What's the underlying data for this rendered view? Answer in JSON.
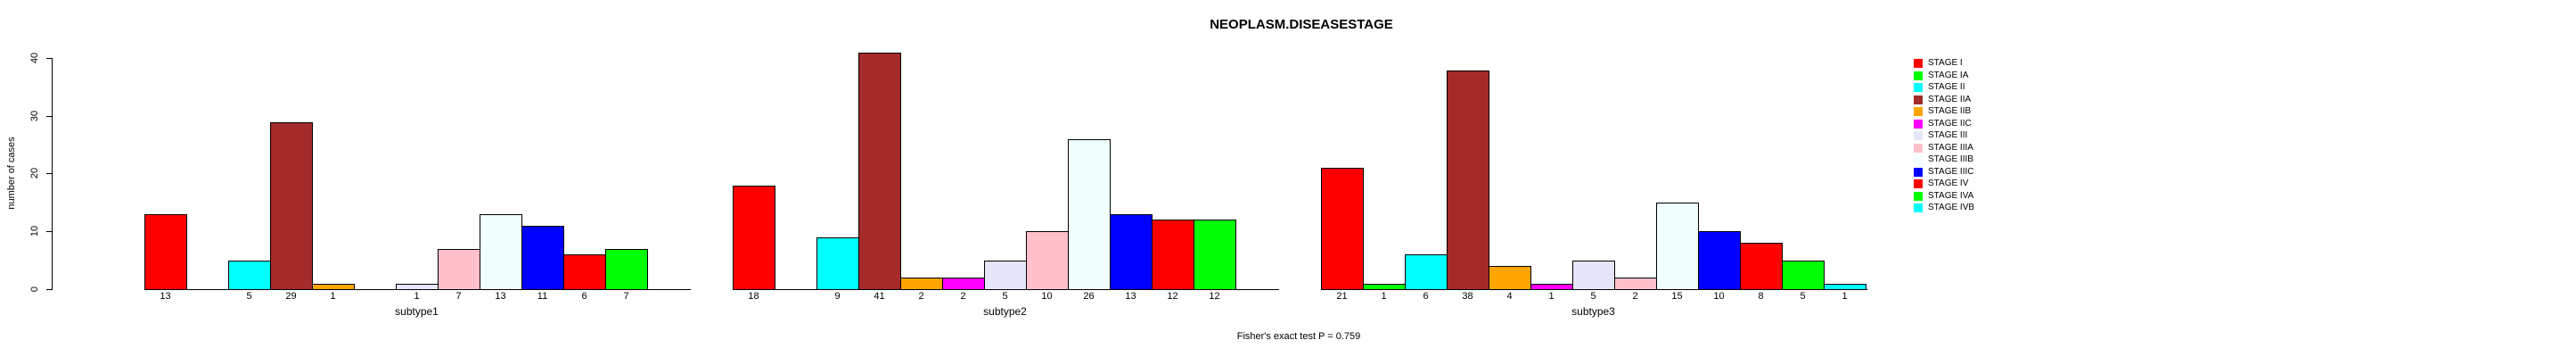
{
  "chart_data": {
    "type": "bar",
    "title": "NEOPLASM.DISEASESTAGE",
    "ylabel": "number of cases",
    "xlabel": "",
    "footnote": "Fisher's exact test P = 0.759",
    "ylim": [
      0,
      40
    ],
    "y_ticks": [
      "0",
      "10",
      "20",
      "30",
      "40"
    ],
    "grid": false,
    "legend_position": "right",
    "background": "#FFFFFF",
    "axis_color": "#000000",
    "bar_border_color": "#000000",
    "categories": [
      "STAGE I",
      "STAGE IA",
      "STAGE II",
      "STAGE IIA",
      "STAGE IIB",
      "STAGE IIC",
      "STAGE III",
      "STAGE IIIA",
      "STAGE IIIB",
      "STAGE IIIC",
      "STAGE IV",
      "STAGE IVA",
      "STAGE IVB"
    ],
    "stage_colors": [
      "#FF0000",
      "#00FF00",
      "#00FFFF",
      "#A52A2A",
      "#FFA500",
      "#FF00FF",
      "#E6E6FA",
      "#FFC0CB",
      "#F0FFFF",
      "#0000FF",
      "#FF0000",
      "#00FF00",
      "#00FFFF"
    ],
    "series": [
      {
        "name": "subtype1",
        "values": [
          13,
          0,
          5,
          29,
          1,
          0,
          1,
          7,
          13,
          11,
          6,
          7,
          0
        ]
      },
      {
        "name": "subtype2",
        "values": [
          18,
          0,
          9,
          41,
          2,
          2,
          5,
          10,
          26,
          13,
          12,
          12,
          0
        ]
      },
      {
        "name": "subtype3",
        "values": [
          21,
          1,
          6,
          38,
          4,
          1,
          5,
          2,
          15,
          10,
          8,
          5,
          1
        ]
      }
    ],
    "legend": [
      {
        "label": "STAGE I",
        "color": "#FF0000"
      },
      {
        "label": "STAGE IA",
        "color": "#00FF00"
      },
      {
        "label": "STAGE II",
        "color": "#00FFFF"
      },
      {
        "label": "STAGE IIA",
        "color": "#A52A2A"
      },
      {
        "label": "STAGE IIB",
        "color": "#FFA500"
      },
      {
        "label": "STAGE IIC",
        "color": "#FF00FF"
      },
      {
        "label": "STAGE III",
        "color": "#E6E6FA"
      },
      {
        "label": "STAGE IIIA",
        "color": "#FFC0CB"
      },
      {
        "label": "STAGE IIIB",
        "color": "#F0FFFF"
      },
      {
        "label": "STAGE IIIC",
        "color": "#0000FF"
      },
      {
        "label": "STAGE IV",
        "color": "#FF0000"
      },
      {
        "label": "STAGE IVA",
        "color": "#00FF00"
      },
      {
        "label": "STAGE IVB",
        "color": "#00FFFF"
      }
    ]
  }
}
